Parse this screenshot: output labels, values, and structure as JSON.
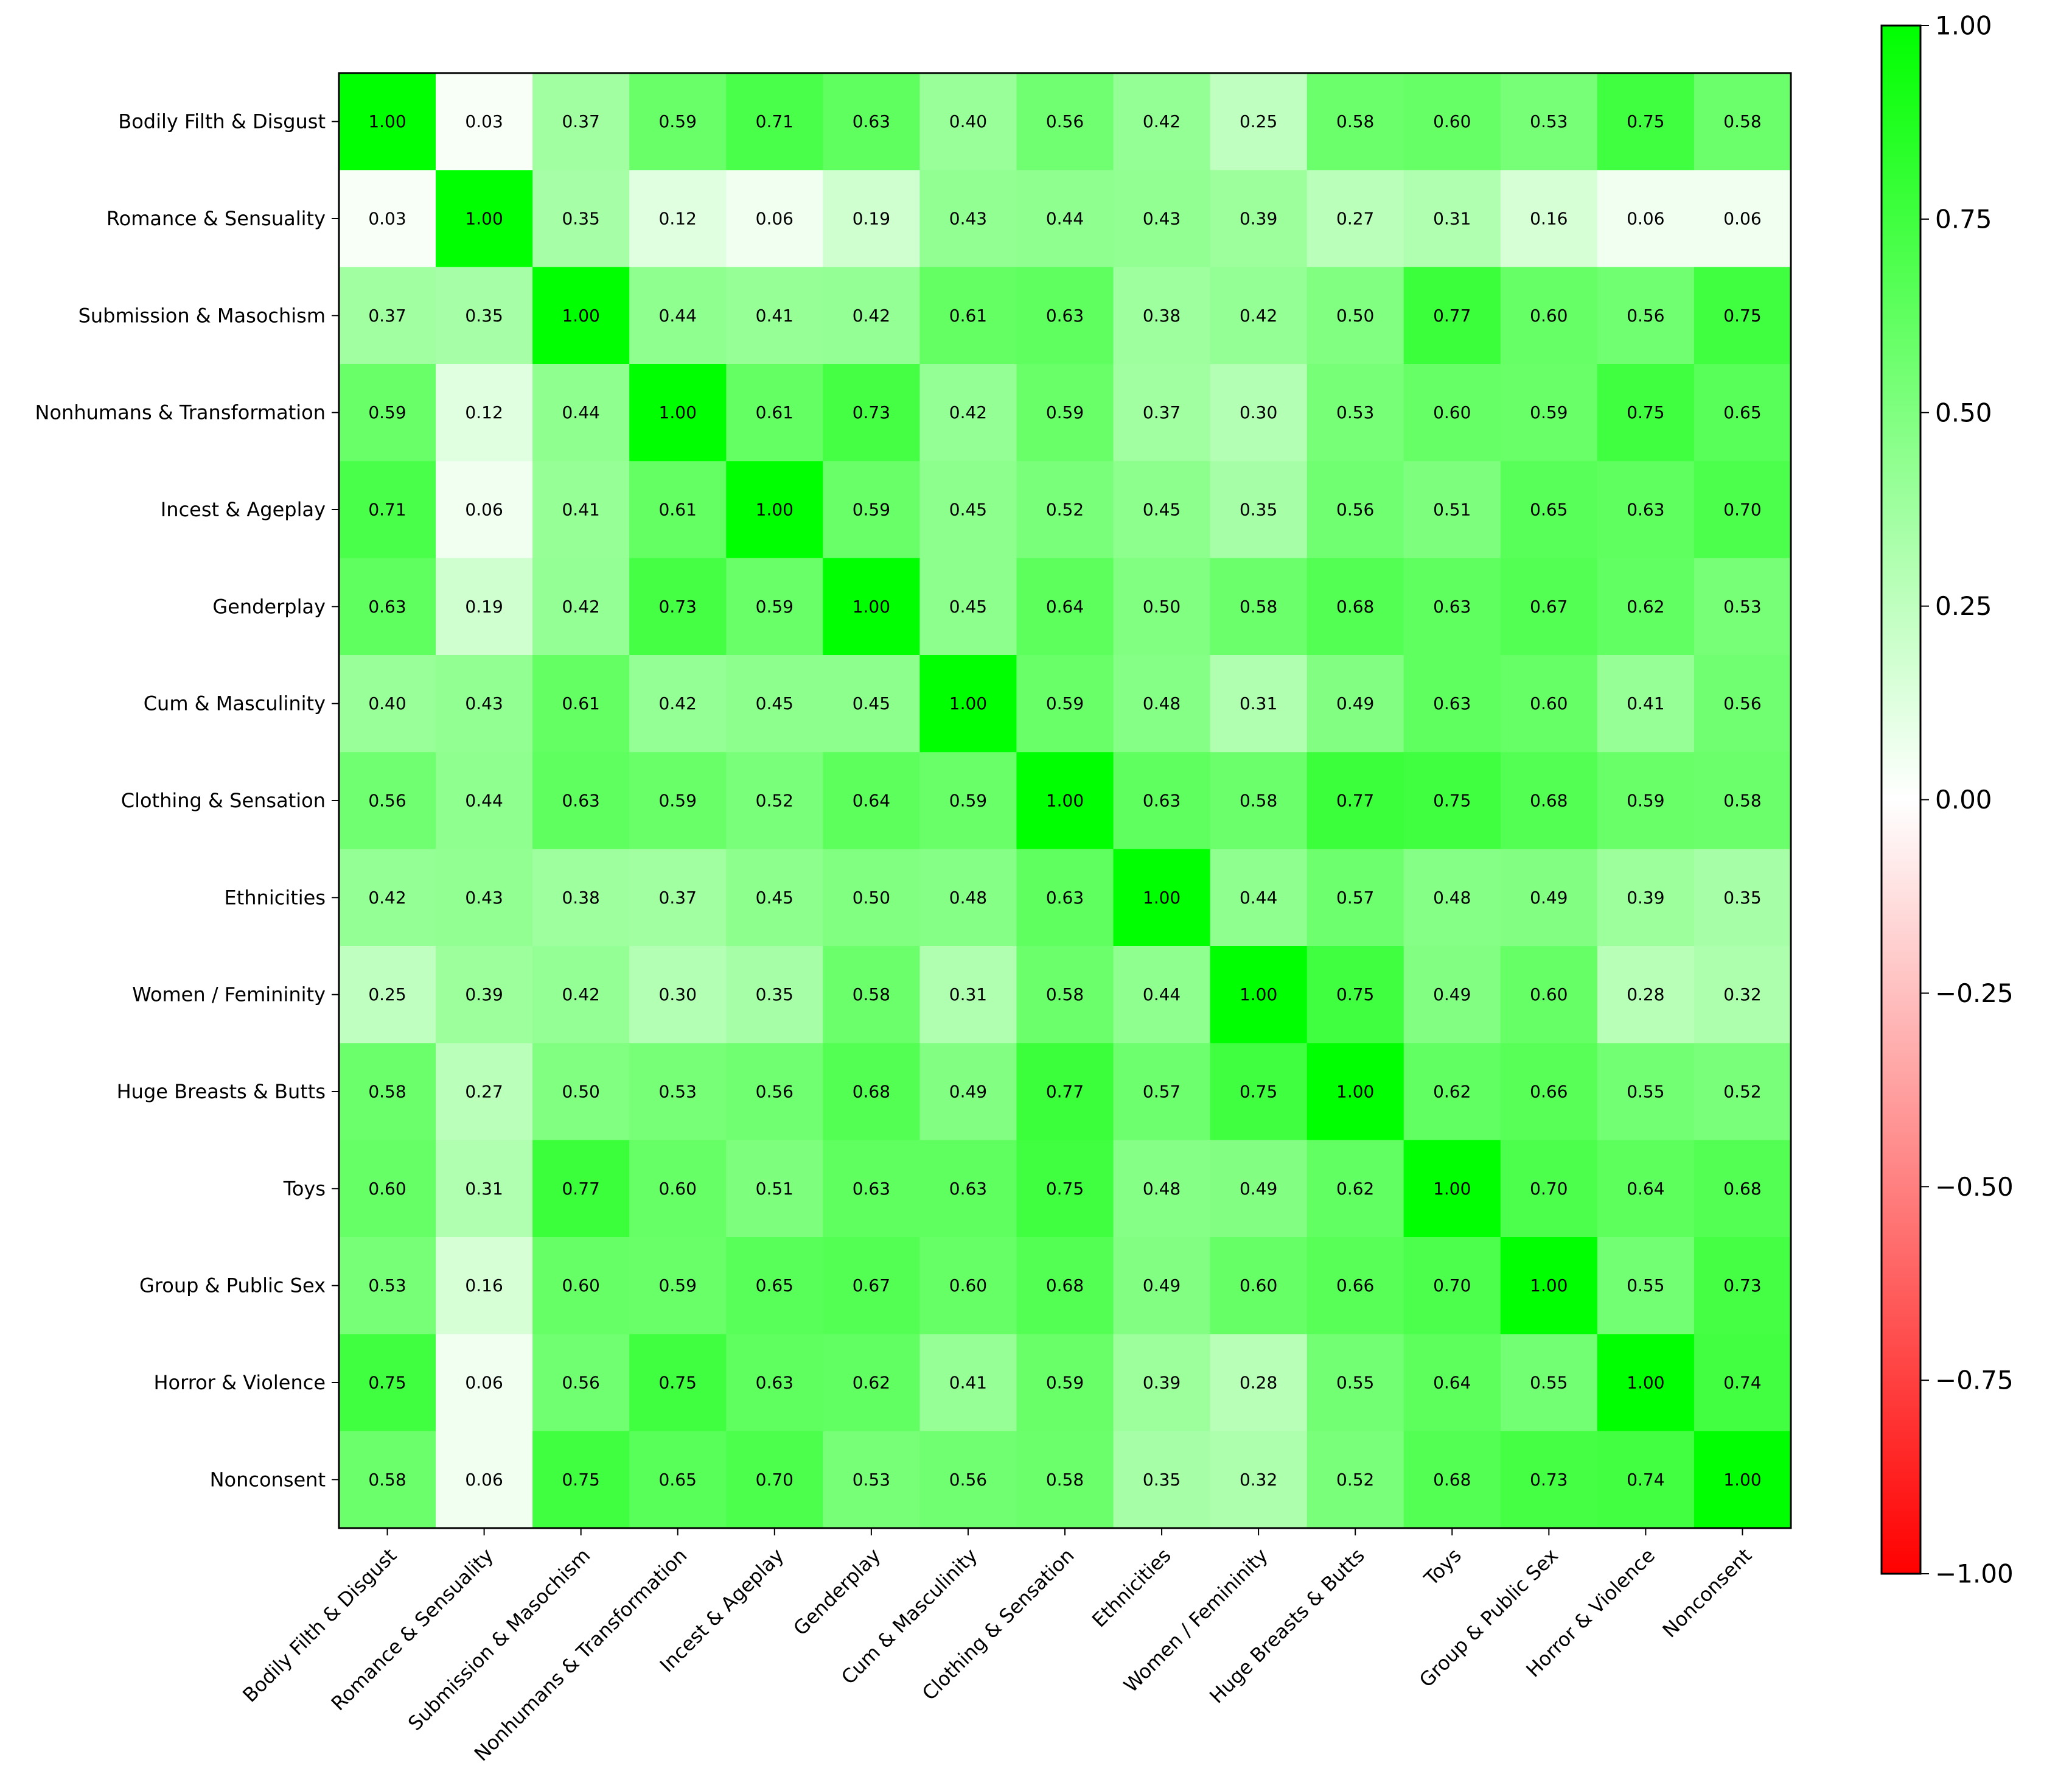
{
  "chart_data": {
    "type": "heatmap",
    "title": "",
    "xlabel": "",
    "ylabel": "",
    "categories": [
      "Bodily Filth & Disgust",
      "Romance & Sensuality",
      "Submission & Masochism",
      "Nonhumans & Transformation",
      "Incest & Ageplay",
      "Genderplay",
      "Cum & Masculinity",
      "Clothing & Sensation",
      "Ethnicities",
      "Women / Femininity",
      "Huge Breasts & Butts",
      "Toys",
      "Group & Public Sex",
      "Horror & Violence",
      "Nonconsent"
    ],
    "values": [
      [
        1.0,
        0.03,
        0.37,
        0.59,
        0.71,
        0.63,
        0.4,
        0.56,
        0.42,
        0.25,
        0.58,
        0.6,
        0.53,
        0.75,
        0.58
      ],
      [
        0.03,
        1.0,
        0.35,
        0.12,
        0.06,
        0.19,
        0.43,
        0.44,
        0.43,
        0.39,
        0.27,
        0.31,
        0.16,
        0.06,
        0.06
      ],
      [
        0.37,
        0.35,
        1.0,
        0.44,
        0.41,
        0.42,
        0.61,
        0.63,
        0.38,
        0.42,
        0.5,
        0.77,
        0.6,
        0.56,
        0.75
      ],
      [
        0.59,
        0.12,
        0.44,
        1.0,
        0.61,
        0.73,
        0.42,
        0.59,
        0.37,
        0.3,
        0.53,
        0.6,
        0.59,
        0.75,
        0.65
      ],
      [
        0.71,
        0.06,
        0.41,
        0.61,
        1.0,
        0.59,
        0.45,
        0.52,
        0.45,
        0.35,
        0.56,
        0.51,
        0.65,
        0.63,
        0.7
      ],
      [
        0.63,
        0.19,
        0.42,
        0.73,
        0.59,
        1.0,
        0.45,
        0.64,
        0.5,
        0.58,
        0.68,
        0.63,
        0.67,
        0.62,
        0.53
      ],
      [
        0.4,
        0.43,
        0.61,
        0.42,
        0.45,
        0.45,
        1.0,
        0.59,
        0.48,
        0.31,
        0.49,
        0.63,
        0.6,
        0.41,
        0.56
      ],
      [
        0.56,
        0.44,
        0.63,
        0.59,
        0.52,
        0.64,
        0.59,
        1.0,
        0.63,
        0.58,
        0.77,
        0.75,
        0.68,
        0.59,
        0.58
      ],
      [
        0.42,
        0.43,
        0.38,
        0.37,
        0.45,
        0.5,
        0.48,
        0.63,
        1.0,
        0.44,
        0.57,
        0.48,
        0.49,
        0.39,
        0.35
      ],
      [
        0.25,
        0.39,
        0.42,
        0.3,
        0.35,
        0.58,
        0.31,
        0.58,
        0.44,
        1.0,
        0.75,
        0.49,
        0.6,
        0.28,
        0.32
      ],
      [
        0.58,
        0.27,
        0.5,
        0.53,
        0.56,
        0.68,
        0.49,
        0.77,
        0.57,
        0.75,
        1.0,
        0.62,
        0.66,
        0.55,
        0.52
      ],
      [
        0.6,
        0.31,
        0.77,
        0.6,
        0.51,
        0.63,
        0.63,
        0.75,
        0.48,
        0.49,
        0.62,
        1.0,
        0.7,
        0.64,
        0.68
      ],
      [
        0.53,
        0.16,
        0.6,
        0.59,
        0.65,
        0.67,
        0.6,
        0.68,
        0.49,
        0.6,
        0.66,
        0.7,
        1.0,
        0.55,
        0.73
      ],
      [
        0.75,
        0.06,
        0.56,
        0.75,
        0.63,
        0.62,
        0.41,
        0.59,
        0.39,
        0.28,
        0.55,
        0.64,
        0.55,
        1.0,
        0.74
      ],
      [
        0.58,
        0.06,
        0.75,
        0.65,
        0.7,
        0.53,
        0.56,
        0.58,
        0.35,
        0.32,
        0.52,
        0.68,
        0.73,
        0.74,
        1.0
      ]
    ],
    "value_format": "2 decimals",
    "colorbar": {
      "min": -1.0,
      "max": 1.0,
      "ticks": [
        1.0,
        0.75,
        0.5,
        0.25,
        0.0,
        -0.25,
        -0.5,
        -0.75,
        -1.0
      ],
      "tick_labels": [
        "1.00",
        "0.75",
        "0.50",
        "0.25",
        "0.00",
        "−0.25",
        "−0.50",
        "−0.75",
        "−1.00"
      ],
      "colors": {
        "low": "#ff0000",
        "mid": "#ffffff",
        "high": "#00ff00"
      }
    },
    "grid": false,
    "legend": "colorbar-right"
  }
}
